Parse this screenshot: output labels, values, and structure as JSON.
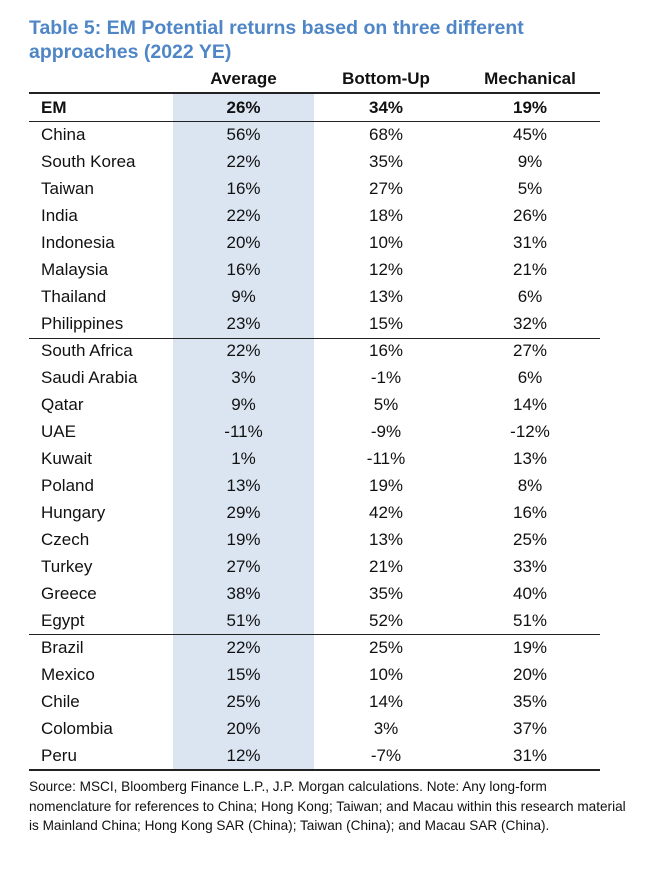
{
  "title": "Table 5: EM Potential returns based on three different approaches (2022 YE)",
  "columns": [
    "Average",
    "Bottom-Up",
    "Mechanical"
  ],
  "rows": [
    {
      "name": "EM",
      "v": [
        "26%",
        "34%",
        "19%"
      ],
      "bold": true
    },
    {
      "name": "China",
      "v": [
        "56%",
        "68%",
        "45%"
      ]
    },
    {
      "name": "South Korea",
      "v": [
        "22%",
        "35%",
        "9%"
      ]
    },
    {
      "name": "Taiwan",
      "v": [
        "16%",
        "27%",
        "5%"
      ]
    },
    {
      "name": "India",
      "v": [
        "22%",
        "18%",
        "26%"
      ]
    },
    {
      "name": "Indonesia",
      "v": [
        "20%",
        "10%",
        "31%"
      ]
    },
    {
      "name": "Malaysia",
      "v": [
        "16%",
        "12%",
        "21%"
      ]
    },
    {
      "name": "Thailand",
      "v": [
        "9%",
        "13%",
        "6%"
      ]
    },
    {
      "name": "Philippines",
      "v": [
        "23%",
        "15%",
        "32%"
      ]
    },
    {
      "name": "South Africa",
      "v": [
        "22%",
        "16%",
        "27%"
      ]
    },
    {
      "name": "Saudi Arabia",
      "v": [
        "3%",
        "-1%",
        "6%"
      ]
    },
    {
      "name": "Qatar",
      "v": [
        "9%",
        "5%",
        "14%"
      ]
    },
    {
      "name": "UAE",
      "v": [
        "-11%",
        "-9%",
        "-12%"
      ]
    },
    {
      "name": "Kuwait",
      "v": [
        "1%",
        "-11%",
        "13%"
      ]
    },
    {
      "name": "Poland",
      "v": [
        "13%",
        "19%",
        "8%"
      ]
    },
    {
      "name": "Hungary",
      "v": [
        "29%",
        "42%",
        "16%"
      ]
    },
    {
      "name": "Czech",
      "v": [
        "19%",
        "13%",
        "25%"
      ]
    },
    {
      "name": "Turkey",
      "v": [
        "27%",
        "21%",
        "33%"
      ]
    },
    {
      "name": "Greece",
      "v": [
        "38%",
        "35%",
        "40%"
      ]
    },
    {
      "name": "Egypt",
      "v": [
        "51%",
        "52%",
        "51%"
      ]
    },
    {
      "name": "Brazil",
      "v": [
        "22%",
        "25%",
        "19%"
      ]
    },
    {
      "name": "Mexico",
      "v": [
        "15%",
        "10%",
        "20%"
      ]
    },
    {
      "name": "Chile",
      "v": [
        "25%",
        "14%",
        "35%"
      ]
    },
    {
      "name": "Colombia",
      "v": [
        "20%",
        "3%",
        "37%"
      ]
    },
    {
      "name": "Peru",
      "v": [
        "12%",
        "-7%",
        "31%"
      ]
    }
  ],
  "source": "Source: MSCI, Bloomberg Finance L.P., J.P. Morgan calculations. Note: Any long-form nomenclature for references to China; Hong Kong; Taiwan; and Macau within this research material is Mainland China; Hong Kong SAR (China); Taiwan (China); and Macau SAR (China).",
  "colors": {
    "title": "#4f86c6",
    "average_column_shade": "#dbe5f1",
    "rule": "#222222"
  }
}
